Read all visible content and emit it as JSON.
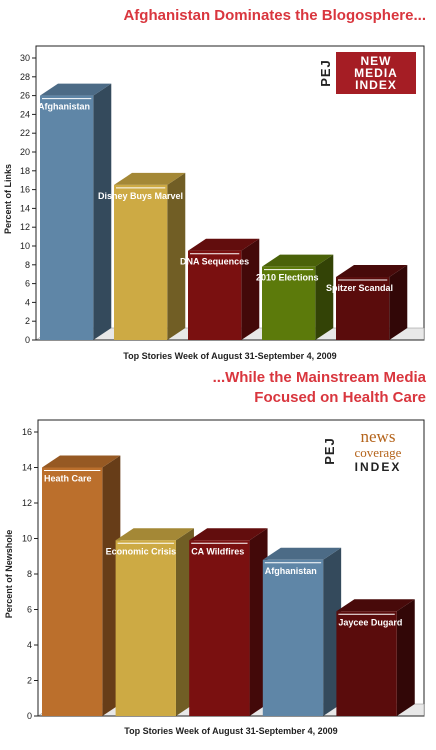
{
  "headline_top": "Afghanistan Dominates the Blogosphere...",
  "headline_bottom_line1": "...While the Mainstream Media",
  "headline_bottom_line2": "Focused on Health Care",
  "logo_top": {
    "pej": "PEJ",
    "lines": [
      "NEW",
      "MEDIA",
      "INDEX"
    ]
  },
  "logo_bottom": {
    "pej": "PEJ",
    "word1": "news",
    "word2": "coverage",
    "word3": "INDEX"
  },
  "colors": {
    "steel_blue": "#5f86a7",
    "mustard": "#cdaa44",
    "dark_red": "#7a1010",
    "olive": "#5c7a0b",
    "maroon": "#5a0c0c",
    "orange_brown": "#bb6f2c",
    "headline_red": "#d9363e"
  },
  "chart_data": [
    {
      "type": "bar",
      "title": "",
      "categories": [
        "Afghanistan",
        "Disney Buys Marvel",
        "DNA Sequences",
        "2010 Elections",
        "Spitzer Scandal"
      ],
      "values": [
        26,
        16.5,
        9.5,
        7.8,
        6.7
      ],
      "bar_colors": [
        "#5f86a7",
        "#cdaa44",
        "#7a1010",
        "#5c7a0b",
        "#5a0c0c"
      ],
      "ylabel": "Percent of Links",
      "xlabel": "Top Stories Week of August 31-September 4, 2009",
      "ylim": [
        0,
        30
      ],
      "yticks": [
        0,
        2,
        4,
        6,
        8,
        10,
        12,
        14,
        16,
        18,
        20,
        22,
        24,
        26,
        28,
        30
      ],
      "grid": false,
      "legend": "none"
    },
    {
      "type": "bar",
      "title": "",
      "categories": [
        "Heath Care",
        "Economic Crisis",
        "CA Wildfires",
        "Afghanistan",
        "Jaycee Dugard"
      ],
      "values": [
        14,
        9.9,
        9.9,
        8.8,
        5.9
      ],
      "bar_colors": [
        "#bb6f2c",
        "#cdaa44",
        "#7a1010",
        "#5f86a7",
        "#5a0c0c"
      ],
      "ylabel": "Percent of Newshole",
      "xlabel": "Top Stories Week of August 31-September 4, 2009",
      "ylim": [
        0,
        16
      ],
      "yticks": [
        0,
        2,
        4,
        6,
        8,
        10,
        12,
        14,
        16
      ],
      "grid": false,
      "legend": "none"
    }
  ]
}
